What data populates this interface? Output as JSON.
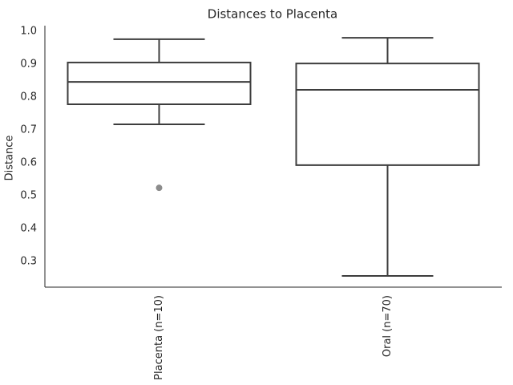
{
  "chart_data": {
    "type": "box",
    "title": "Distances to Placenta",
    "ylabel": "Distance",
    "categories": [
      "Placenta (n=10)",
      "Oral (n=70)"
    ],
    "boxes": [
      {
        "whislo": 0.717,
        "q1": 0.778,
        "median": 0.846,
        "q3": 0.905,
        "whishi": 0.976,
        "fliers": [
          0.524
        ]
      },
      {
        "whislo": 0.256,
        "q1": 0.593,
        "median": 0.822,
        "q3": 0.902,
        "whishi": 0.98,
        "fliers": []
      }
    ],
    "color": "#3d3d3d",
    "flier_color": "#8c8c8c",
    "fill": "#ffffff",
    "ylim": [
      0.222,
      1.017
    ],
    "yticks": [
      0.3,
      0.4,
      0.5,
      0.6,
      0.7,
      0.8,
      0.9,
      {
        "value": 1,
        "label": "1.0"
      }
    ],
    "grid": false
  }
}
